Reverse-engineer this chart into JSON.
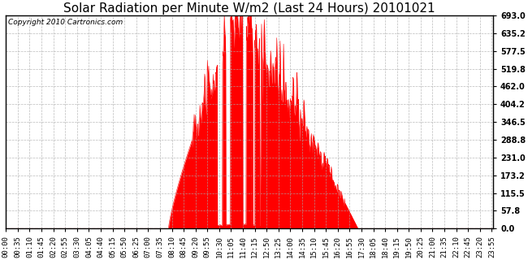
{
  "title": "Solar Radiation per Minute W/m2 (Last 24 Hours) 20101021",
  "copyright": "Copyright 2010 Cartronics.com",
  "yticks": [
    0.0,
    57.8,
    115.5,
    173.2,
    231.0,
    288.8,
    346.5,
    404.2,
    462.0,
    519.8,
    577.5,
    635.2,
    693.0
  ],
  "ymax": 693.0,
  "ymin": 0.0,
  "bg_color": "#ffffff",
  "fill_color": "#ff0000",
  "grid_color": "#aaaaaa",
  "dashed_line_color": "#ff0000",
  "title_fontsize": 11,
  "copyright_fontsize": 6.5,
  "tick_fontsize": 6.5,
  "n_minutes": 1440
}
